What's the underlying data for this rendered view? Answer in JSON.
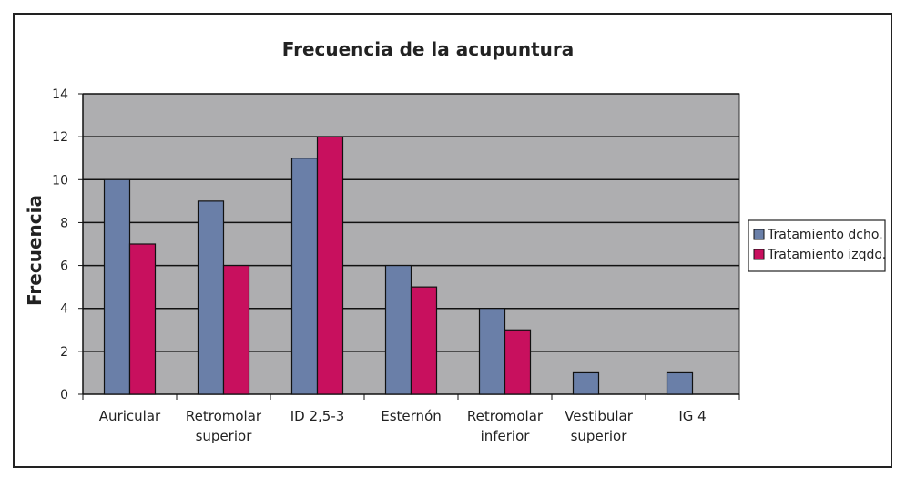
{
  "chart_data": {
    "type": "bar",
    "title": "Frecuencia de la acupuntura",
    "xlabel": "",
    "ylabel": "Frecuencia",
    "ylim": [
      0,
      14
    ],
    "yticks": [
      0,
      2,
      4,
      6,
      8,
      10,
      12,
      14
    ],
    "grid": "horizontal",
    "legend_position": "right",
    "categories": [
      [
        "Auricular"
      ],
      [
        "Retromolar",
        "superior"
      ],
      [
        "ID 2,5-3"
      ],
      [
        "Esternón"
      ],
      [
        "Retromolar",
        "inferior"
      ],
      [
        "Vestibular",
        "superior"
      ],
      [
        "IG 4"
      ]
    ],
    "series": [
      {
        "name": "Tratamiento dcho.",
        "color": "#6a7fa8",
        "values": [
          10,
          9,
          11,
          6,
          4,
          1,
          1
        ]
      },
      {
        "name": "Tratamiento izqdo.",
        "color": "#c8105e",
        "values": [
          7,
          6,
          12,
          5,
          3,
          0,
          0
        ]
      }
    ],
    "plot_background": "#aeaeb0"
  }
}
